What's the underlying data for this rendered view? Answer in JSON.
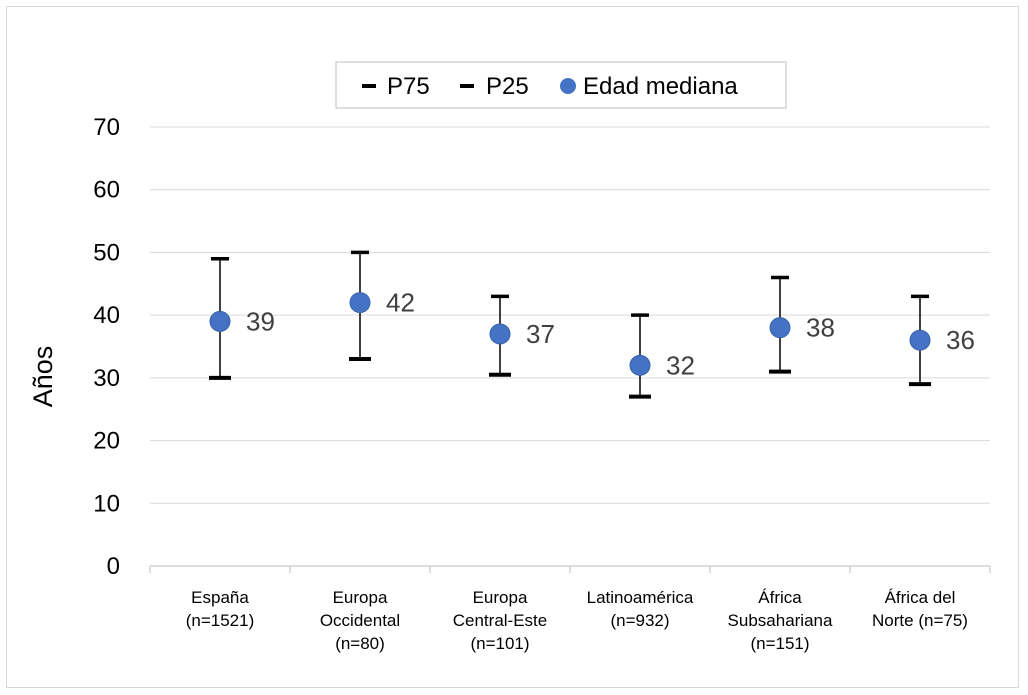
{
  "chart_data": {
    "type": "scatter",
    "title": "",
    "xlabel": "",
    "ylabel": "Años",
    "ylim": [
      0,
      70
    ],
    "yticks": [
      0,
      10,
      20,
      30,
      40,
      50,
      60,
      70
    ],
    "grid": true,
    "legend": {
      "position": "top",
      "entries": [
        "P75",
        "P25",
        "Edad mediana"
      ]
    },
    "categories": [
      [
        "España",
        "(n=1521)"
      ],
      [
        "Europa",
        "Occidental",
        "(n=80)"
      ],
      [
        "Europa",
        "Central-Este",
        "(n=101)"
      ],
      [
        "Latinoamérica",
        "(n=932)"
      ],
      [
        "África",
        "Subsahariana",
        "(n=151)"
      ],
      [
        "África del",
        "Norte (n=75)"
      ]
    ],
    "series": [
      {
        "name": "P75",
        "values": [
          49,
          50,
          43,
          40,
          46,
          43
        ]
      },
      {
        "name": "P25",
        "values": [
          30,
          33,
          30.5,
          27,
          31,
          29
        ]
      },
      {
        "name": "Edad mediana",
        "values": [
          39,
          42,
          37,
          32,
          38,
          36
        ],
        "data_labels": [
          "39",
          "42",
          "37",
          "32",
          "38",
          "36"
        ]
      }
    ],
    "colors": {
      "median": "#4472c4",
      "whisker": "#000000",
      "grid": "#d9d9d9",
      "axis": "#bfbfbf",
      "label": "#404040"
    }
  }
}
